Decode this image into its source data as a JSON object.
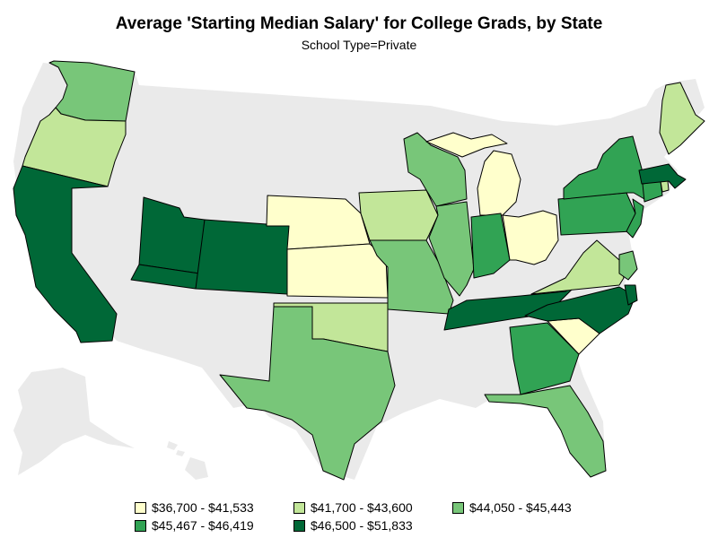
{
  "title": "Average 'Starting Median Salary' for College Grads, by State",
  "subtitle": "School Type=Private",
  "colors": {
    "background_state": "#eaeaea",
    "bin1": "#ffffcc",
    "bin2": "#c2e699",
    "bin3": "#78c679",
    "bin4": "#31a354",
    "bin5": "#006837"
  },
  "legend": [
    {
      "label": "$36,700 - $41,533",
      "color": "#ffffcc"
    },
    {
      "label": "$41,700 - $43,600",
      "color": "#c2e699"
    },
    {
      "label": "$44,050 - $45,443",
      "color": "#78c679"
    },
    {
      "label": "$45,467 - $46,419",
      "color": "#31a354"
    },
    {
      "label": "$46,500 - $51,833",
      "color": "#006837"
    }
  ],
  "states": [
    {
      "name": "Washington",
      "bin": 3
    },
    {
      "name": "Oregon",
      "bin": 2
    },
    {
      "name": "California",
      "bin": 5
    },
    {
      "name": "Utah",
      "bin": 5
    },
    {
      "name": "Arizona",
      "bin": 5
    },
    {
      "name": "Colorado",
      "bin": 5
    },
    {
      "name": "Nebraska",
      "bin": 1
    },
    {
      "name": "Kansas",
      "bin": 1
    },
    {
      "name": "Oklahoma",
      "bin": 2
    },
    {
      "name": "Texas",
      "bin": 3
    },
    {
      "name": "Iowa",
      "bin": 2
    },
    {
      "name": "Missouri",
      "bin": 3
    },
    {
      "name": "Wisconsin",
      "bin": 3
    },
    {
      "name": "Illinois",
      "bin": 3
    },
    {
      "name": "Michigan",
      "bin": 1
    },
    {
      "name": "Indiana",
      "bin": 4
    },
    {
      "name": "Ohio",
      "bin": 1
    },
    {
      "name": "Tennessee",
      "bin": 5
    },
    {
      "name": "Georgia",
      "bin": 4
    },
    {
      "name": "Florida",
      "bin": 3
    },
    {
      "name": "South Carolina",
      "bin": 1
    },
    {
      "name": "North Carolina",
      "bin": 5
    },
    {
      "name": "Virginia",
      "bin": 2
    },
    {
      "name": "Pennsylvania",
      "bin": 4
    },
    {
      "name": "New York",
      "bin": 4
    },
    {
      "name": "New Jersey",
      "bin": 4
    },
    {
      "name": "Connecticut",
      "bin": 4
    },
    {
      "name": "Rhode Island",
      "bin": 2
    },
    {
      "name": "Massachusetts",
      "bin": 5
    },
    {
      "name": "Maine",
      "bin": 2
    },
    {
      "name": "Maryland",
      "bin": 3
    },
    {
      "name": "Delaware",
      "bin": 5
    }
  ]
}
